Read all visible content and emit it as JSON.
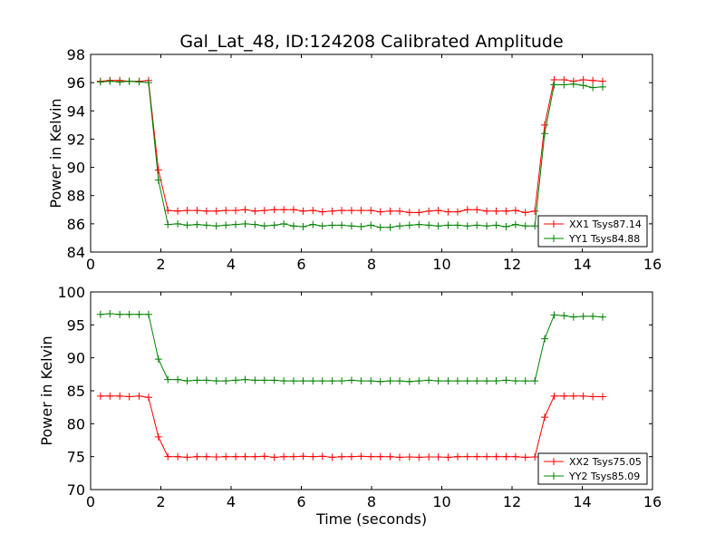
{
  "chart_data": [
    {
      "type": "line",
      "title": "Gal_Lat_48, ID:124208 Calibrated Amplitude",
      "xlabel": "",
      "ylabel": "Power in Kelvin",
      "xlim": [
        0,
        16
      ],
      "ylim": [
        84,
        98
      ],
      "xticks": [
        0,
        2,
        4,
        6,
        8,
        10,
        12,
        14,
        16
      ],
      "yticks": [
        84,
        86,
        88,
        90,
        92,
        94,
        96,
        98
      ],
      "legend_position": "lower-right",
      "x": [
        0.28,
        0.55,
        0.83,
        1.1,
        1.38,
        1.65,
        1.93,
        2.2,
        2.48,
        2.75,
        3.03,
        3.3,
        3.58,
        3.85,
        4.13,
        4.4,
        4.68,
        4.95,
        5.23,
        5.5,
        5.78,
        6.05,
        6.33,
        6.6,
        6.88,
        7.15,
        7.43,
        7.7,
        7.98,
        8.25,
        8.53,
        8.8,
        9.08,
        9.35,
        9.63,
        9.9,
        10.18,
        10.45,
        10.73,
        11.0,
        11.28,
        11.55,
        11.83,
        12.1,
        12.38,
        12.65,
        12.93,
        13.2,
        13.48,
        13.75,
        14.03,
        14.3,
        14.58
      ],
      "series": [
        {
          "name": "XX1 Tsys87.14",
          "color": "#ff0000",
          "values": [
            96.1,
            96.15,
            96.15,
            96.1,
            96.1,
            96.15,
            89.8,
            86.95,
            86.9,
            86.95,
            86.95,
            86.9,
            86.9,
            86.95,
            86.95,
            87.0,
            86.9,
            86.95,
            87.0,
            87.0,
            87.0,
            86.9,
            86.95,
            86.85,
            86.9,
            86.95,
            86.95,
            86.95,
            86.95,
            86.85,
            86.9,
            86.9,
            86.8,
            86.8,
            86.9,
            86.95,
            86.85,
            86.85,
            87.0,
            87.0,
            86.9,
            86.9,
            86.9,
            86.95,
            86.8,
            86.9,
            93.0,
            96.2,
            96.2,
            96.1,
            96.2,
            96.15,
            96.1
          ]
        },
        {
          "name": "YY1 Tsys84.88",
          "color": "#008000",
          "values": [
            96.05,
            96.1,
            96.05,
            96.1,
            96.05,
            96.0,
            89.1,
            85.95,
            86.0,
            85.9,
            85.95,
            85.9,
            85.85,
            85.9,
            85.95,
            86.0,
            85.95,
            85.85,
            85.9,
            86.0,
            85.85,
            85.8,
            85.95,
            85.85,
            85.9,
            85.9,
            85.85,
            85.8,
            85.9,
            85.75,
            85.75,
            85.85,
            85.9,
            85.95,
            85.9,
            85.85,
            85.9,
            85.9,
            85.85,
            85.9,
            85.85,
            85.9,
            85.8,
            85.95,
            85.85,
            85.85,
            92.4,
            95.85,
            95.85,
            95.9,
            95.8,
            95.65,
            95.7
          ]
        }
      ]
    },
    {
      "type": "line",
      "title": "",
      "xlabel": "Time (seconds)",
      "ylabel": "Power in Kelvin",
      "xlim": [
        0,
        16
      ],
      "ylim": [
        70,
        100
      ],
      "xticks": [
        0,
        2,
        4,
        6,
        8,
        10,
        12,
        14,
        16
      ],
      "yticks": [
        70,
        75,
        80,
        85,
        90,
        95,
        100
      ],
      "legend_position": "lower-right",
      "x": [
        0.28,
        0.55,
        0.83,
        1.1,
        1.38,
        1.65,
        1.93,
        2.2,
        2.48,
        2.75,
        3.03,
        3.3,
        3.58,
        3.85,
        4.13,
        4.4,
        4.68,
        4.95,
        5.23,
        5.5,
        5.78,
        6.05,
        6.33,
        6.6,
        6.88,
        7.15,
        7.43,
        7.7,
        7.98,
        8.25,
        8.53,
        8.8,
        9.08,
        9.35,
        9.63,
        9.9,
        10.18,
        10.45,
        10.73,
        11.0,
        11.28,
        11.55,
        11.83,
        12.1,
        12.38,
        12.65,
        12.93,
        13.2,
        13.48,
        13.75,
        14.03,
        14.3,
        14.58
      ],
      "series": [
        {
          "name": "XX2 Tsys75.05",
          "color": "#ff0000",
          "values": [
            84.2,
            84.2,
            84.2,
            84.1,
            84.2,
            84.0,
            78.0,
            75.0,
            75.0,
            74.9,
            75.0,
            75.0,
            74.95,
            75.0,
            75.0,
            75.0,
            75.0,
            75.05,
            74.9,
            75.0,
            75.0,
            75.05,
            75.0,
            75.05,
            74.9,
            75.0,
            75.0,
            75.05,
            75.0,
            75.0,
            75.0,
            74.9,
            74.95,
            74.9,
            74.95,
            74.95,
            74.9,
            75.0,
            75.0,
            75.0,
            75.0,
            75.0,
            75.0,
            75.0,
            74.9,
            74.95,
            81.0,
            84.2,
            84.2,
            84.2,
            84.2,
            84.1,
            84.1
          ]
        },
        {
          "name": "YY2 Tsys85.09",
          "color": "#008000",
          "values": [
            96.6,
            96.7,
            96.6,
            96.6,
            96.6,
            96.6,
            89.8,
            86.7,
            86.7,
            86.5,
            86.6,
            86.6,
            86.5,
            86.5,
            86.6,
            86.7,
            86.6,
            86.6,
            86.6,
            86.5,
            86.5,
            86.5,
            86.5,
            86.5,
            86.5,
            86.5,
            86.6,
            86.5,
            86.5,
            86.4,
            86.5,
            86.5,
            86.4,
            86.5,
            86.6,
            86.5,
            86.5,
            86.5,
            86.5,
            86.5,
            86.5,
            86.5,
            86.6,
            86.5,
            86.5,
            86.5,
            92.9,
            96.5,
            96.4,
            96.2,
            96.3,
            96.3,
            96.2
          ]
        }
      ]
    }
  ]
}
